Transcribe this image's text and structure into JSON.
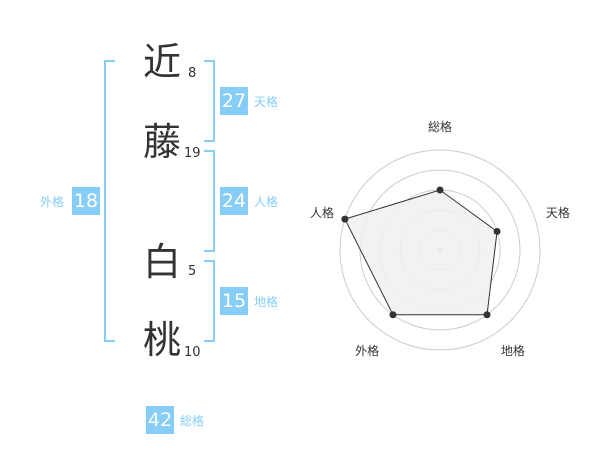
{
  "name": {
    "chars": [
      {
        "char": "近",
        "strokes": "8"
      },
      {
        "char": "藤",
        "strokes": "19"
      },
      {
        "char": "白",
        "strokes": "5"
      },
      {
        "char": "桃",
        "strokes": "10"
      }
    ]
  },
  "kaku": {
    "tenkaku": {
      "value": "27",
      "label": "天格"
    },
    "jinkaku": {
      "value": "24",
      "label": "人格"
    },
    "chikaku": {
      "value": "15",
      "label": "地格"
    },
    "gaikaku": {
      "value": "18",
      "label": "外格"
    },
    "soukaku": {
      "value": "42",
      "label": "総格"
    }
  },
  "colors": {
    "accent": "#86cdf7",
    "text": "#333333",
    "radar_fill": "#f0f0f0",
    "radar_stroke": "#333333",
    "grid": "#cccccc"
  },
  "chart_data": {
    "type": "radar",
    "categories": [
      "総格",
      "天格",
      "地格",
      "外格",
      "人格"
    ],
    "values": [
      3,
      3,
      4,
      4,
      5
    ],
    "rlim": [
      0,
      5
    ]
  }
}
